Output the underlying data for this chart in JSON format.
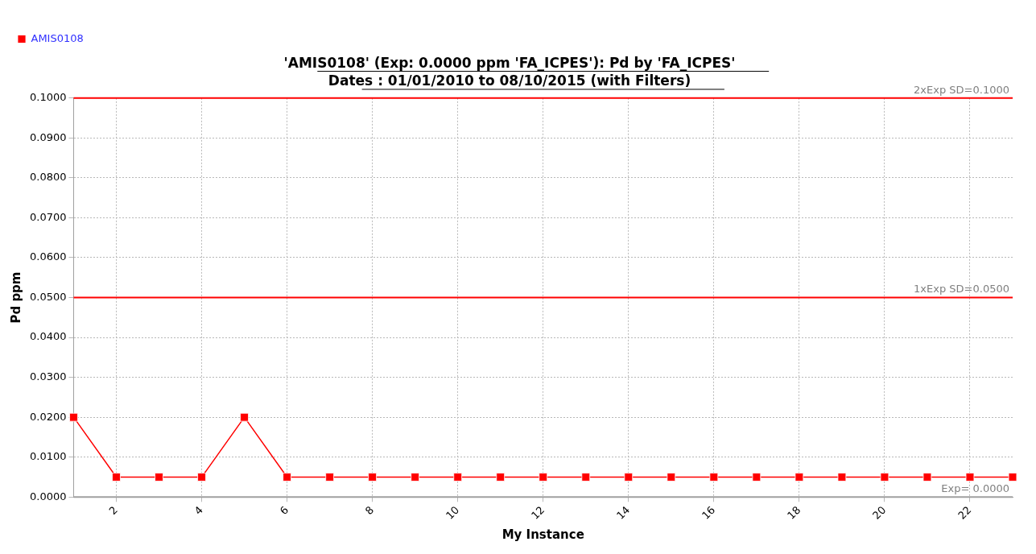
{
  "chart_data": {
    "type": "line",
    "title": "'AMIS0108' (Exp: 0.0000 ppm 'FA_ICPES'): Pd by 'FA_ICPES'",
    "subtitle": "Dates : 01/01/2010 to 08/10/2015 (with Filters)",
    "xlabel": "My Instance",
    "ylabel": "Pd ppm",
    "series": [
      {
        "name": "AMIS0108",
        "color": "#ff0000",
        "x": [
          1,
          2,
          3,
          4,
          5,
          6,
          7,
          8,
          9,
          10,
          11,
          12,
          13,
          14,
          15,
          16,
          17,
          18,
          19,
          20,
          21,
          22,
          23
        ],
        "values": [
          0.02,
          0.005,
          0.005,
          0.005,
          0.02,
          0.005,
          0.005,
          0.005,
          0.005,
          0.005,
          0.005,
          0.005,
          0.005,
          0.005,
          0.005,
          0.005,
          0.005,
          0.005,
          0.005,
          0.005,
          0.005,
          0.005,
          0.005
        ]
      }
    ],
    "xlim": [
      1,
      23
    ],
    "xticks": [
      2,
      4,
      6,
      8,
      10,
      12,
      14,
      16,
      18,
      20,
      22
    ],
    "ylim": [
      0,
      0.1
    ],
    "yticks": [
      {
        "value": 0,
        "label": "0.0000"
      },
      {
        "value": 0.01,
        "label": "0.0100"
      },
      {
        "value": 0.02,
        "label": "0.0200"
      },
      {
        "value": 0.03,
        "label": "0.0300"
      },
      {
        "value": 0.04,
        "label": "0.0400"
      },
      {
        "value": 0.05,
        "label": "0.0500"
      },
      {
        "value": 0.06,
        "label": "0.0600"
      },
      {
        "value": 0.07,
        "label": "0.0700"
      },
      {
        "value": 0.08,
        "label": "0.0800"
      },
      {
        "value": 0.09,
        "label": "0.0900"
      },
      {
        "value": 0.1,
        "label": "0.1000"
      }
    ],
    "ref_lines": [
      {
        "axis": "y",
        "value": 0.1,
        "label": "2xExp SD=0.1000",
        "color": "#ff0000"
      },
      {
        "axis": "y",
        "value": 0.05,
        "label": "1xExp SD=0.0500",
        "color": "#ff0000"
      },
      {
        "axis": "y",
        "value": 0,
        "label": "Exp= 0.0000",
        "color": "#a0a0a0"
      }
    ],
    "grid": true,
    "legend": "top left",
    "marker": "square",
    "line_style": "solid"
  }
}
